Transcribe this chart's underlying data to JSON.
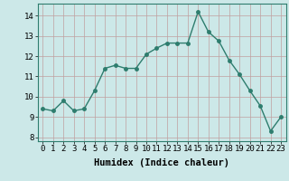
{
  "x": [
    0,
    1,
    2,
    3,
    4,
    5,
    6,
    7,
    8,
    9,
    10,
    11,
    12,
    13,
    14,
    15,
    16,
    17,
    18,
    19,
    20,
    21,
    22,
    23
  ],
  "y": [
    9.4,
    9.3,
    9.8,
    9.3,
    9.4,
    10.3,
    11.4,
    11.55,
    11.4,
    11.4,
    12.1,
    12.4,
    12.65,
    12.65,
    12.65,
    14.2,
    13.2,
    12.75,
    11.8,
    11.1,
    10.3,
    9.55,
    8.3,
    9.0
  ],
  "line_color": "#2e7d6e",
  "marker_color": "#2e7d6e",
  "bg_color": "#cce8e8",
  "grid_color": "#c0a0a0",
  "xlabel": "Humidex (Indice chaleur)",
  "xlim": [
    -0.5,
    23.5
  ],
  "ylim": [
    7.8,
    14.6
  ],
  "yticks": [
    8,
    9,
    10,
    11,
    12,
    13,
    14
  ],
  "xticks": [
    0,
    1,
    2,
    3,
    4,
    5,
    6,
    7,
    8,
    9,
    10,
    11,
    12,
    13,
    14,
    15,
    16,
    17,
    18,
    19,
    20,
    21,
    22,
    23
  ],
  "xlabel_fontsize": 7.5,
  "tick_fontsize": 6.5,
  "line_width": 1.0,
  "marker_size": 2.5
}
